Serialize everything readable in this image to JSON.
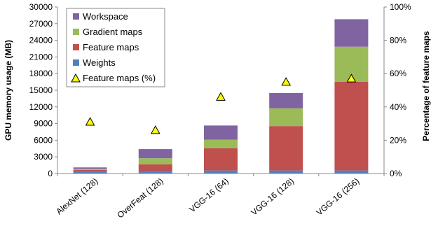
{
  "chart_data": {
    "type": "bar",
    "stacked": true,
    "categories": [
      "AlexNet (128)",
      "OverFeat (128)",
      "VGG-16 (64)",
      "VGG-16 (128)",
      "VGG-16 (256)"
    ],
    "series": [
      {
        "name": "Weights",
        "color": "#4f81bd",
        "values": [
          300,
          500,
          550,
          550,
          550
        ]
      },
      {
        "name": "Feature maps",
        "color": "#c0504d",
        "values": [
          350,
          1150,
          4000,
          8000,
          16000
        ]
      },
      {
        "name": "Gradient maps",
        "color": "#9bbb59",
        "values": [
          200,
          1100,
          1550,
          3200,
          6300
        ]
      },
      {
        "name": "Workspace",
        "color": "#8064a2",
        "values": [
          250,
          1650,
          2550,
          2750,
          4950
        ]
      }
    ],
    "line_series": {
      "name": "Feature maps (%)",
      "marker": "triangle",
      "color": "#ffff00",
      "values": [
        31,
        26,
        46,
        55,
        57
      ]
    },
    "ylabel": "GPU memory usage (MB)",
    "y2label": "Percentage of feature maps",
    "ylim": [
      0,
      30000
    ],
    "y2lim": [
      0,
      100
    ],
    "yticks": [
      "0",
      "3000",
      "6000",
      "9000",
      "12000",
      "15000",
      "18000",
      "21000",
      "24000",
      "27000",
      "30000"
    ],
    "y2ticks": [
      "0%",
      "20%",
      "40%",
      "60%",
      "80%",
      "100%"
    ],
    "legend": {
      "position": "top-left",
      "entries": [
        "Workspace",
        "Gradient maps",
        "Feature maps",
        "Weights",
        "Feature maps (%)"
      ]
    },
    "grid": false
  }
}
